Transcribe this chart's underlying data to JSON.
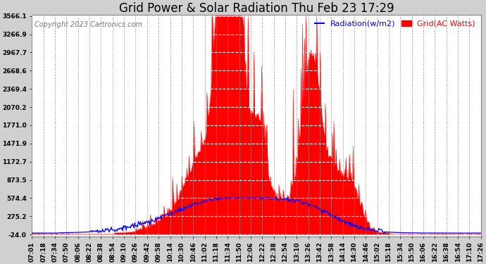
{
  "title": "Grid Power & Solar Radiation Thu Feb 23 17:29",
  "copyright": "Copyright 2023 Cartronics.com",
  "legend_radiation": "Radiation(w/m2)",
  "legend_grid": "Grid(AC Watts)",
  "yticks": [
    -24.0,
    275.2,
    574.4,
    873.5,
    1172.7,
    1471.9,
    1771.0,
    2070.2,
    2369.4,
    2668.6,
    2967.7,
    3266.9,
    3566.1
  ],
  "ymin": -24.0,
  "ymax": 3566.1,
  "bg_color": "#d0d0d0",
  "plot_bg_color": "#ffffff",
  "grid_color": "#999999",
  "radiation_color": "#0000ff",
  "grid_power_color": "#ff0000",
  "title_fontsize": 12,
  "copyright_fontsize": 7,
  "legend_fontsize": 8,
  "tick_fontsize": 6.5,
  "num_points": 630
}
